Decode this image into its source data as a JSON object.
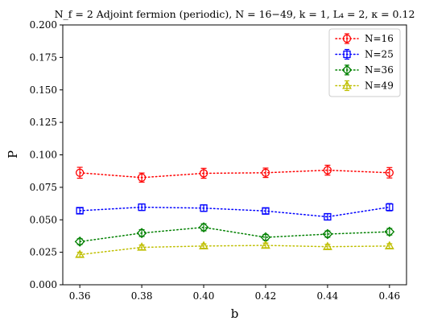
{
  "chart_data": {
    "type": "line",
    "title": "N_f = 2 Adjoint fermion (periodic), N = 16−49, k = 1, L₄ = 2, κ = 0.12",
    "xlabel": "b",
    "ylabel": "P",
    "x": [
      0.36,
      0.38,
      0.4,
      0.42,
      0.44,
      0.46
    ],
    "xticks": [
      "0.36",
      "0.38",
      "0.40",
      "0.42",
      "0.44",
      "0.46"
    ],
    "xlim": [
      0.3545,
      0.4655
    ],
    "ylim": [
      0.0,
      0.2
    ],
    "yticks": [
      "0.000",
      "0.025",
      "0.050",
      "0.075",
      "0.100",
      "0.125",
      "0.150",
      "0.175",
      "0.200"
    ],
    "grid": false,
    "legend_position": "top-right",
    "series": [
      {
        "name": "N=16",
        "color": "#ff0000",
        "marker": "circle",
        "values": [
          0.0862,
          0.0825,
          0.0858,
          0.0862,
          0.0882,
          0.0862
        ],
        "errors": [
          0.0042,
          0.0035,
          0.0038,
          0.0036,
          0.0038,
          0.004
        ]
      },
      {
        "name": "N=25",
        "color": "#0000ff",
        "marker": "square",
        "values": [
          0.057,
          0.0597,
          0.059,
          0.0568,
          0.0523,
          0.0597
        ],
        "errors": [
          0.0022,
          0.0025,
          0.0025,
          0.0022,
          0.0024,
          0.0028
        ]
      },
      {
        "name": "N=36",
        "color": "#008000",
        "marker": "diamond",
        "values": [
          0.0332,
          0.0398,
          0.0442,
          0.0365,
          0.039,
          0.0408
        ],
        "errors": [
          0.0022,
          0.0026,
          0.0027,
          0.0022,
          0.0024,
          0.0025
        ]
      },
      {
        "name": "N=49",
        "color": "#bfbf00",
        "marker": "triangle",
        "values": [
          0.0232,
          0.0288,
          0.0298,
          0.0303,
          0.0293,
          0.0298
        ],
        "errors": [
          0.0018,
          0.0018,
          0.0017,
          0.0018,
          0.0018,
          0.0018
        ]
      }
    ]
  }
}
